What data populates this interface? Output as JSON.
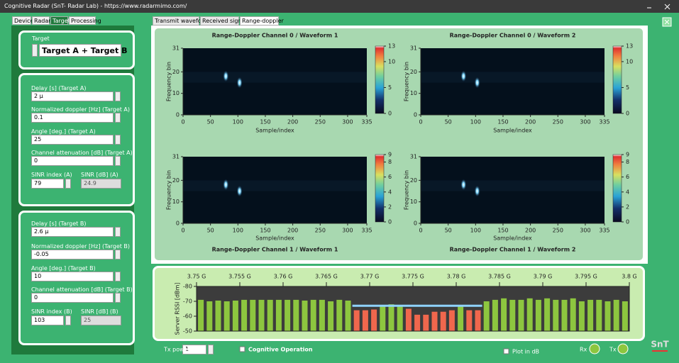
{
  "window": {
    "title": "Cognitive Radar  (SnT- Radar Lab) - https://www.radarmimo.com/"
  },
  "left_tabs": [
    "Device",
    "Radar",
    "Target",
    "Processing"
  ],
  "target_selector": {
    "label": "Target",
    "value": "Target A + Target B"
  },
  "target_a": {
    "fields": [
      {
        "label": "Delay [s] (Target A)",
        "value": "2 μ"
      },
      {
        "label": "Normalized doppler [Hz]  (Target A)",
        "value": "0.1"
      },
      {
        "label": "Angle [deg.]  (Target A)",
        "value": "25"
      },
      {
        "label": "Channel attenuation [dB]  (Target A)",
        "value": "0"
      }
    ],
    "sinr": [
      {
        "label": "SINR index (A)",
        "value": "79"
      },
      {
        "label": "SINR [dB] (A)",
        "value": "24.9"
      }
    ]
  },
  "target_b": {
    "fields": [
      {
        "label": "Delay [s] (Target B)",
        "value": "2.6 μ"
      },
      {
        "label": "Normalized doppler [Hz]  (Target B)",
        "value": "-0.05"
      },
      {
        "label": "Angle [deg.]  (Target B)",
        "value": "10"
      },
      {
        "label": "Channel attenuation [dB]  (Target B)",
        "value": "0"
      }
    ],
    "sinr": [
      {
        "label": "SINR index (B)",
        "value": "103"
      },
      {
        "label": "SINR [dB] (B)",
        "value": "25"
      }
    ]
  },
  "plot_tabs": [
    "Transmit waveform",
    "Received signal",
    "Range-doppler"
  ],
  "heatmaps": [
    {
      "title": "Range-Doppler Channel 0 / Waveform 1",
      "xlabel": "Sample/index",
      "ylabel": "Frequency bin",
      "xlim": [
        0,
        335
      ],
      "xticks": [
        0,
        50,
        100,
        150,
        200,
        250,
        300,
        335
      ],
      "ylim": [
        0,
        31
      ],
      "yticks": [
        0,
        10,
        20,
        31
      ],
      "clim": [
        0,
        13
      ],
      "cticks": [
        0,
        5,
        10,
        13
      ],
      "peaks": [
        {
          "x": 78,
          "y": 18
        },
        {
          "x": 103,
          "y": 15
        }
      ]
    },
    {
      "title": "Range-Doppler Channel 0 / Waveform 2",
      "xlabel": "Sample/index",
      "ylabel": "Frequency bin",
      "xlim": [
        0,
        335
      ],
      "xticks": [
        0,
        50,
        100,
        150,
        200,
        250,
        300,
        335
      ],
      "ylim": [
        0,
        31
      ],
      "yticks": [
        0,
        10,
        20,
        31
      ],
      "clim": [
        0,
        13
      ],
      "cticks": [
        0,
        5,
        10,
        13
      ],
      "peaks": [
        {
          "x": 78,
          "y": 18
        },
        {
          "x": 103,
          "y": 15
        }
      ]
    },
    {
      "title": "Range-Doppler Channel 1 / Waveform 1",
      "xlabel": "Sample/index",
      "ylabel": "Frequency bin",
      "xlim": [
        0,
        335
      ],
      "xticks": [
        0,
        50,
        100,
        150,
        200,
        250,
        300,
        335
      ],
      "ylim": [
        0,
        31
      ],
      "yticks": [
        0,
        10,
        20,
        31
      ],
      "clim": [
        0,
        9
      ],
      "cticks": [
        0,
        2,
        4,
        6,
        8,
        9
      ],
      "peaks": [
        {
          "x": 78,
          "y": 18
        },
        {
          "x": 103,
          "y": 15
        }
      ]
    },
    {
      "title": "Range-Doppler Channel 1 / Waveform 2",
      "xlabel": "Sample/index",
      "ylabel": "Frequency bin",
      "xlim": [
        0,
        335
      ],
      "xticks": [
        0,
        50,
        100,
        150,
        200,
        250,
        300,
        335
      ],
      "ylim": [
        0,
        31
      ],
      "yticks": [
        0,
        10,
        20,
        31
      ],
      "clim": [
        0,
        9
      ],
      "cticks": [
        0,
        2,
        4,
        6,
        8,
        9
      ],
      "peaks": [
        {
          "x": 78,
          "y": 18
        },
        {
          "x": 103,
          "y": 15
        }
      ]
    }
  ],
  "spectrum": {
    "type": "bar",
    "ylabel": "Server RSSI [dBm]",
    "xlim": [
      3.75,
      3.8
    ],
    "xticks": [
      {
        "value": 3.75,
        "label": "3.75 G"
      },
      {
        "value": 3.755,
        "label": "3.755 G"
      },
      {
        "value": 3.76,
        "label": "3.76 G"
      },
      {
        "value": 3.765,
        "label": "3.765 G"
      },
      {
        "value": 3.77,
        "label": "3.77 G"
      },
      {
        "value": 3.775,
        "label": "3.775 G"
      },
      {
        "value": 3.78,
        "label": "3.78 G"
      },
      {
        "value": 3.785,
        "label": "3.785 G"
      },
      {
        "value": 3.79,
        "label": "3.79 G"
      },
      {
        "value": 3.795,
        "label": "3.795 G"
      },
      {
        "value": 3.8,
        "label": "3.8 G"
      }
    ],
    "ylim": [
      -50,
      -80
    ],
    "yticks": [
      -80,
      -70,
      -60,
      -50
    ],
    "x": [
      3.7505,
      3.7515,
      3.7525,
      3.7535,
      3.7545,
      3.7555,
      3.7565,
      3.7575,
      3.7585,
      3.7595,
      3.7605,
      3.7615,
      3.7625,
      3.7635,
      3.7645,
      3.7655,
      3.7665,
      3.7675,
      3.7685,
      3.7695,
      3.7705,
      3.7715,
      3.7725,
      3.7735,
      3.7745,
      3.7755,
      3.7765,
      3.7775,
      3.7785,
      3.7795,
      3.7805,
      3.7815,
      3.7825,
      3.7835,
      3.7845,
      3.7855,
      3.7865,
      3.7875,
      3.7885,
      3.7895,
      3.7905,
      3.7915,
      3.7925,
      3.7935,
      3.7945,
      3.7955,
      3.7965,
      3.7975,
      3.7985,
      3.7995
    ],
    "values": [
      -71,
      -70,
      -70.5,
      -70,
      -70.5,
      -71,
      -71,
      -71,
      -71,
      -71,
      -71,
      -71,
      -70.5,
      -71,
      -71,
      -70,
      -71,
      -70.5,
      -64,
      -64,
      -64.5,
      -67,
      -68,
      -67,
      -65,
      -61,
      -61,
      -63,
      -63,
      -64,
      -67,
      -64,
      -64,
      -70,
      -71,
      -72,
      -71,
      -71,
      -72,
      -71,
      -72,
      -71,
      -71,
      -72,
      -70,
      -71,
      -71,
      -70,
      -71,
      -70
    ],
    "colors": [
      "#8dc63f",
      "#8dc63f",
      "#8dc63f",
      "#8dc63f",
      "#8dc63f",
      "#8dc63f",
      "#8dc63f",
      "#8dc63f",
      "#8dc63f",
      "#8dc63f",
      "#8dc63f",
      "#8dc63f",
      "#8dc63f",
      "#8dc63f",
      "#8dc63f",
      "#8dc63f",
      "#8dc63f",
      "#8dc63f",
      "#f0674d",
      "#f0674d",
      "#f0674d",
      "#8dc63f",
      "#8dc63f",
      "#8dc63f",
      "#f0674d",
      "#f0674d",
      "#f0674d",
      "#f0674d",
      "#f0674d",
      "#f0674d",
      "#8dc63f",
      "#f0674d",
      "#f0674d",
      "#8dc63f",
      "#8dc63f",
      "#8dc63f",
      "#8dc63f",
      "#8dc63f",
      "#8dc63f",
      "#8dc63f",
      "#8dc63f",
      "#8dc63f",
      "#8dc63f",
      "#8dc63f",
      "#8dc63f",
      "#8dc63f",
      "#8dc63f",
      "#8dc63f",
      "#8dc63f",
      "#8dc63f"
    ],
    "threshold": {
      "value": -67,
      "xlim": [
        3.768,
        3.783
      ],
      "color": "#8fd3ff"
    }
  },
  "bottom": {
    "tx_power_label": "Tx power",
    "tx_power": "1",
    "cognitive": "Cognitive Operation",
    "plot_db": "Plot in dB",
    "rx": "Rx",
    "tx": "Tx"
  },
  "logo": "SnT"
}
